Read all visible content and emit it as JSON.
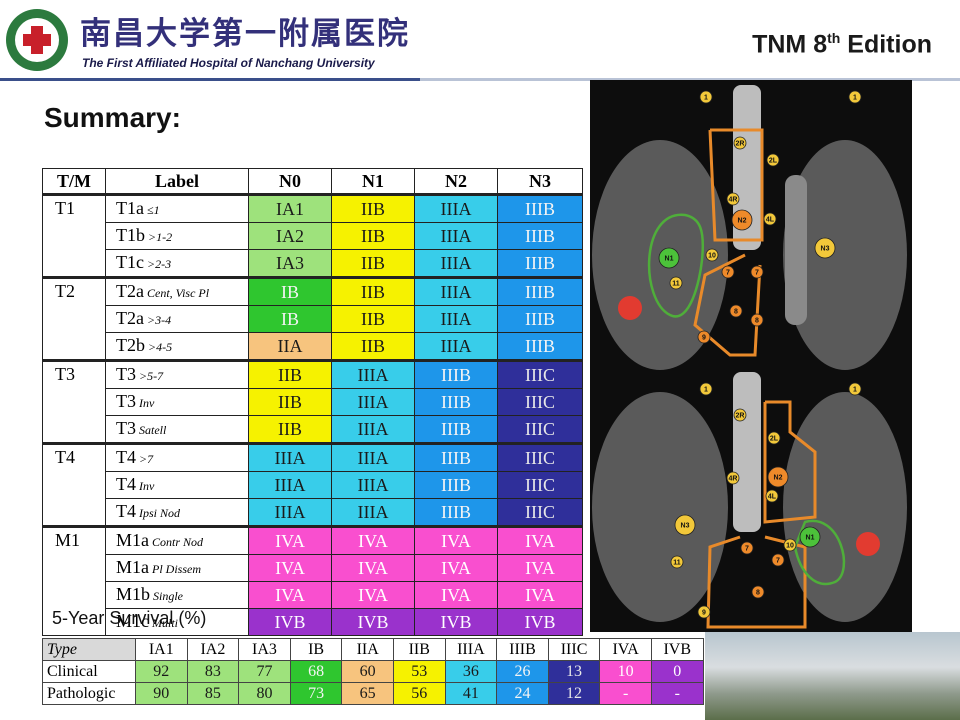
{
  "header": {
    "logo_chinese": "南昌大学第一附属医院",
    "logo_english": "The First Affiliated Hospital of Nanchang University",
    "edition": {
      "prefix": "TNM 8",
      "sup": "th",
      "suffix": "Edition"
    }
  },
  "summary_title": "Summary:",
  "staging_table": {
    "headers": [
      "T/M",
      "Label",
      "N0",
      "N1",
      "N2",
      "N3"
    ],
    "groups": [
      {
        "name": "T1",
        "rows": [
          {
            "label": "T1a",
            "note": "≤1",
            "stages": [
              "IA1",
              "IIB",
              "IIIA",
              "IIIB"
            ]
          },
          {
            "label": "T1b",
            "note": ">1-2",
            "stages": [
              "IA2",
              "IIB",
              "IIIA",
              "IIIB"
            ]
          },
          {
            "label": "T1c",
            "note": ">2-3",
            "stages": [
              "IA3",
              "IIB",
              "IIIA",
              "IIIB"
            ]
          }
        ]
      },
      {
        "name": "T2",
        "rows": [
          {
            "label": "T2a",
            "note": "Cent, Visc Pl",
            "stages": [
              "IB",
              "IIB",
              "IIIA",
              "IIIB"
            ]
          },
          {
            "label": "T2a",
            "note": ">3-4",
            "stages": [
              "IB",
              "IIB",
              "IIIA",
              "IIIB"
            ]
          },
          {
            "label": "T2b",
            "note": ">4-5",
            "stages": [
              "IIA",
              "IIB",
              "IIIA",
              "IIIB"
            ]
          }
        ]
      },
      {
        "name": "T3",
        "rows": [
          {
            "label": "T3",
            "note": ">5-7",
            "stages": [
              "IIB",
              "IIIA",
              "IIIB",
              "IIIC"
            ]
          },
          {
            "label": "T3",
            "note": "Inv",
            "stages": [
              "IIB",
              "IIIA",
              "IIIB",
              "IIIC"
            ]
          },
          {
            "label": "T3",
            "note": "Satell",
            "stages": [
              "IIB",
              "IIIA",
              "IIIB",
              "IIIC"
            ]
          }
        ]
      },
      {
        "name": "T4",
        "rows": [
          {
            "label": "T4",
            "note": ">7",
            "stages": [
              "IIIA",
              "IIIA",
              "IIIB",
              "IIIC"
            ]
          },
          {
            "label": "T4",
            "note": "Inv",
            "stages": [
              "IIIA",
              "IIIA",
              "IIIB",
              "IIIC"
            ]
          },
          {
            "label": "T4",
            "note": "Ipsi Nod",
            "stages": [
              "IIIA",
              "IIIA",
              "IIIB",
              "IIIC"
            ]
          }
        ]
      },
      {
        "name": "M1",
        "rows": [
          {
            "label": "M1a",
            "note": "Contr Nod",
            "stages": [
              "IVA",
              "IVA",
              "IVA",
              "IVA"
            ]
          },
          {
            "label": "M1a",
            "note": "Pl Dissem",
            "stages": [
              "IVA",
              "IVA",
              "IVA",
              "IVA"
            ]
          },
          {
            "label": "M1b",
            "note": "Single",
            "stages": [
              "IVA",
              "IVA",
              "IVA",
              "IVA"
            ]
          },
          {
            "label": "M1c",
            "note": "Multi",
            "stages": [
              "IVB",
              "IVB",
              "IVB",
              "IVB"
            ]
          }
        ]
      }
    ]
  },
  "stage_styles": {
    "IA1": {
      "bg": "#9ee27c",
      "fg": "#1a1a1a"
    },
    "IA2": {
      "bg": "#9ee27c",
      "fg": "#1a1a1a"
    },
    "IA3": {
      "bg": "#9ee27c",
      "fg": "#1a1a1a"
    },
    "IB": {
      "bg": "#2fc62f",
      "fg": "#f4f4f4"
    },
    "IIA": {
      "bg": "#f7c47e",
      "fg": "#1a1a1a"
    },
    "IIB": {
      "bg": "#f6f200",
      "fg": "#1a1a1a"
    },
    "IIIA": {
      "bg": "#38cdea",
      "fg": "#1a1a1a"
    },
    "IIIB": {
      "bg": "#1e96ea",
      "fg": "#f4f4f4"
    },
    "IIIC": {
      "bg": "#2f2f9a",
      "fg": "#e8e8e8"
    },
    "IVA": {
      "bg": "#f94fcf",
      "fg": "#ffffff"
    },
    "IVB": {
      "bg": "#9a32cc",
      "fg": "#ffffff"
    }
  },
  "survival": {
    "title": "5-Year Survival (%)",
    "headers": [
      "Type",
      "IA1",
      "IA2",
      "IA3",
      "IB",
      "IIA",
      "IIB",
      "IIIA",
      "IIIB",
      "IIIC",
      "IVA",
      "IVB"
    ],
    "rows": [
      {
        "type": "Clinical",
        "values": [
          92,
          83,
          77,
          68,
          60,
          53,
          36,
          26,
          13,
          10,
          0
        ]
      },
      {
        "type": "Pathologic",
        "values": [
          90,
          85,
          80,
          73,
          65,
          56,
          41,
          24,
          12,
          "-",
          "-"
        ]
      }
    ]
  },
  "diagrams": [
    {
      "nodes": [
        "1",
        "1",
        "2R",
        "2L",
        "4R",
        "4L",
        "N2",
        "N3",
        "N1",
        "10",
        "7",
        "7",
        "11",
        "8",
        "8",
        "9"
      ]
    },
    {
      "nodes": [
        "1",
        "1",
        "2R",
        "2L",
        "N2",
        "4R",
        "4L",
        "N3",
        "N1",
        "10",
        "7",
        "7",
        "11",
        "8",
        "9"
      ]
    }
  ]
}
